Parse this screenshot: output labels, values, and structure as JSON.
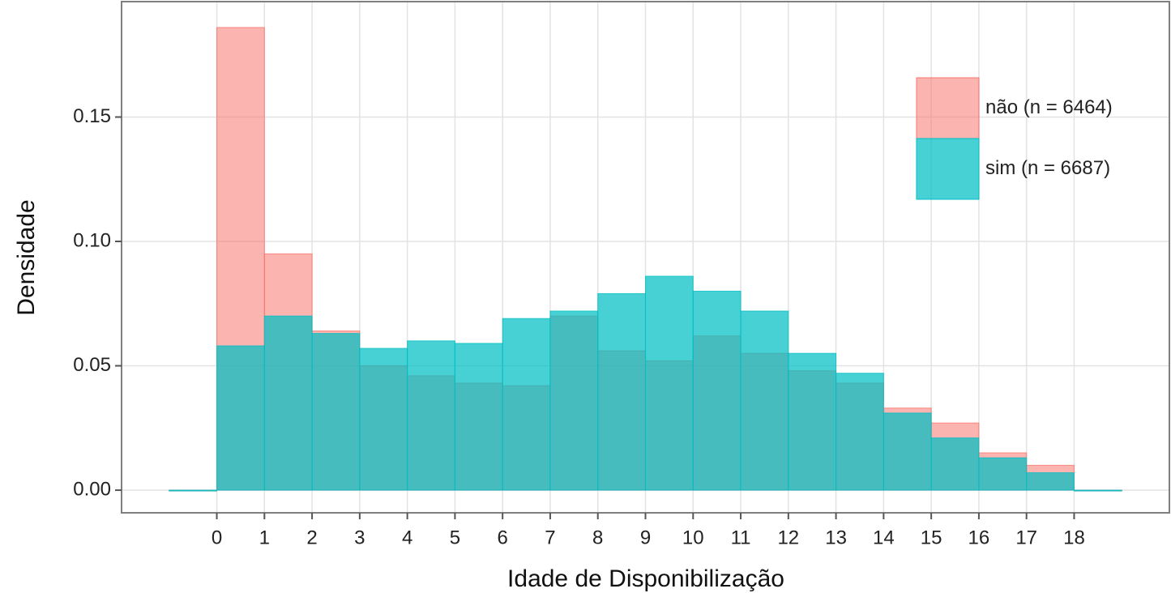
{
  "chart_data": {
    "type": "histogram",
    "xlabel": "Idade de Disponibilização",
    "ylabel": "Densidade",
    "bins": [
      -1,
      0,
      1,
      2,
      3,
      4,
      5,
      6,
      7,
      8,
      9,
      10,
      11,
      12,
      13,
      14,
      15,
      16,
      17,
      18,
      19
    ],
    "series": [
      {
        "name": "não (n = 6464)",
        "color": "#F8766D",
        "values": [
          0,
          0.186,
          0.095,
          0.064,
          0.05,
          0.046,
          0.043,
          0.042,
          0.07,
          0.056,
          0.052,
          0.062,
          0.055,
          0.048,
          0.043,
          0.033,
          0.027,
          0.015,
          0.01,
          0
        ]
      },
      {
        "name": "sim (n = 6687)",
        "color": "#00BFC4",
        "values": [
          0,
          0.058,
          0.07,
          0.063,
          0.057,
          0.06,
          0.059,
          0.069,
          0.072,
          0.079,
          0.086,
          0.08,
          0.072,
          0.055,
          0.047,
          0.031,
          0.021,
          0.013,
          0.007,
          0
        ]
      }
    ],
    "xlim": [
      -2,
      20
    ],
    "ylim": [
      -0.0091,
      0.1964
    ],
    "xticks": [
      0,
      1,
      2,
      3,
      4,
      5,
      6,
      7,
      8,
      9,
      10,
      11,
      12,
      13,
      14,
      15,
      16,
      17,
      18
    ],
    "yticks": [
      {
        "value": 0,
        "label": "0.00"
      },
      {
        "value": 0.05,
        "label": "0.05"
      },
      {
        "value": 0.1,
        "label": "0.10"
      },
      {
        "value": 0.15,
        "label": "0.15"
      }
    ],
    "grid": true,
    "legend": "top-right"
  }
}
